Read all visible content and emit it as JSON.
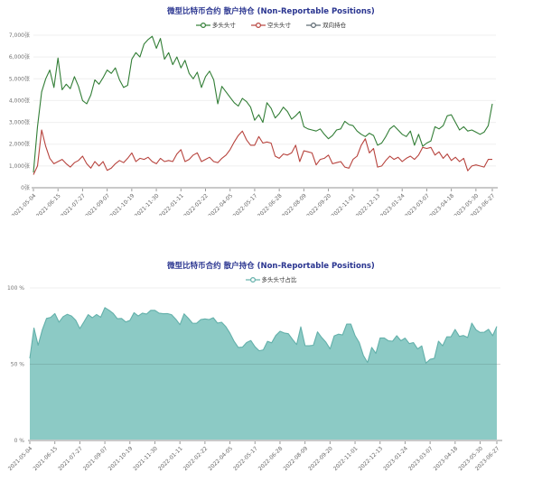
{
  "chart_data": [
    {
      "type": "line",
      "title": "微型比特币合约 散户持仓 (Non-Reportable Positions)",
      "x_start": "2021-05-04",
      "x_interval_days": 7,
      "n_points": 113,
      "x_tick_indices": [
        0,
        6,
        12,
        18,
        24,
        30,
        36,
        42,
        48,
        54,
        60,
        66,
        72,
        78,
        84,
        90,
        96,
        102,
        108,
        112
      ],
      "x_tick_labels": [
        "2021-05-04",
        "2021-06-15",
        "2021-07-27",
        "2021-09-07",
        "2021-10-19",
        "2021-11-30",
        "2022-01-11",
        "2022-02-22",
        "2022-04-05",
        "2022-05-17",
        "2022-06-28",
        "2022-08-09",
        "2022-09-20",
        "2022-11-01",
        "2022-12-13",
        "2023-01-24",
        "2023-03-07",
        "2023-04-18",
        "2023-05-30",
        "2023-06-27"
      ],
      "ylim": [
        0,
        7000
      ],
      "y_tick_values": [
        0,
        1000,
        2000,
        3000,
        4000,
        5000,
        6000,
        7000
      ],
      "y_tick_labels": [
        "0张",
        "1,000张",
        "2,000张",
        "3,000张",
        "4,000张",
        "5,000张",
        "6,000张",
        "7,000张"
      ],
      "grid": true,
      "legend_position": "top",
      "series": [
        {
          "key": "long",
          "name": "多头头寸",
          "color": "#327e36",
          "values": [
            700,
            2800,
            4400,
            5000,
            5400,
            4600,
            5950,
            4500,
            4750,
            4550,
            5100,
            4650,
            4000,
            3850,
            4250,
            4950,
            4750,
            5050,
            5400,
            5250,
            5500,
            4950,
            4600,
            4700,
            5900,
            6200,
            6000,
            6600,
            6800,
            6950,
            6400,
            6850,
            5900,
            6200,
            5650,
            6000,
            5500,
            5850,
            5250,
            5000,
            5300,
            4600,
            5100,
            5350,
            4950,
            3850,
            4650,
            4400,
            4150,
            3900,
            3750,
            4100,
            3950,
            3700,
            3100,
            3350,
            3000,
            3900,
            3650,
            3200,
            3400,
            3700,
            3500,
            3150,
            3300,
            3500,
            2800,
            2700,
            2650,
            2600,
            2700,
            2450,
            2250,
            2400,
            2650,
            2700,
            3050,
            2900,
            2850,
            2600,
            2450,
            2350,
            2500,
            2400,
            1950,
            2050,
            2350,
            2700,
            2850,
            2650,
            2450,
            2350,
            2600,
            1950,
            2450,
            1900,
            2050,
            2150,
            2800,
            2700,
            2850,
            3300,
            3350,
            3000,
            2650,
            2800,
            2600,
            2650,
            2550,
            2450,
            2550,
            2850,
            3850
          ]
        },
        {
          "key": "short",
          "name": "空头头寸",
          "color": "#b7433d",
          "values": [
            600,
            1000,
            2650,
            1900,
            1350,
            1100,
            1200,
            1300,
            1100,
            950,
            1150,
            1250,
            1450,
            1100,
            900,
            1200,
            1000,
            1200,
            800,
            900,
            1100,
            1250,
            1150,
            1350,
            1600,
            1200,
            1350,
            1300,
            1400,
            1200,
            1100,
            1350,
            1200,
            1250,
            1200,
            1550,
            1750,
            1200,
            1300,
            1500,
            1600,
            1200,
            1300,
            1400,
            1200,
            1150,
            1350,
            1500,
            1750,
            2100,
            2400,
            2600,
            2200,
            1950,
            1950,
            2350,
            2050,
            2100,
            2050,
            1450,
            1350,
            1550,
            1500,
            1600,
            1950,
            1200,
            1700,
            1650,
            1600,
            1050,
            1300,
            1350,
            1500,
            1100,
            1150,
            1200,
            950,
            900,
            1300,
            1450,
            1950,
            2250,
            1600,
            1800,
            950,
            1000,
            1250,
            1450,
            1300,
            1400,
            1200,
            1350,
            1450,
            1300,
            1500,
            1850,
            1800,
            1850,
            1500,
            1650,
            1350,
            1550,
            1250,
            1400,
            1200,
            1350,
            780,
            1000,
            1050,
            1000,
            950,
            1300,
            1300
          ]
        },
        {
          "key": "spread",
          "name": "双向持仓",
          "color": "#5b6770",
          "values": 0
        }
      ]
    },
    {
      "type": "area",
      "title": "微型比特币合约 散户持仓 (Non-Reportable Positions)",
      "x_start": "2021-05-04",
      "x_interval_days": 7,
      "n_points": 113,
      "x_tick_indices": [
        0,
        6,
        12,
        18,
        24,
        30,
        36,
        42,
        48,
        54,
        60,
        66,
        72,
        78,
        84,
        90,
        96,
        102,
        108,
        112
      ],
      "x_tick_labels": [
        "2021-05-04",
        "2021-06-15",
        "2021-07-27",
        "2021-09-07",
        "2021-10-19",
        "2021-11-30",
        "2022-01-11",
        "2022-02-22",
        "2022-04-05",
        "2022-05-17",
        "2022-06-28",
        "2022-08-09",
        "2022-09-20",
        "2022-11-01",
        "2022-12-13",
        "2023-01-24",
        "2023-03-07",
        "2023-04-18",
        "2023-05-30",
        "2023-06-27"
      ],
      "ylim": [
        0,
        100
      ],
      "y_tick_values": [
        0,
        50,
        100
      ],
      "y_tick_labels": [
        "0 %",
        "50 %",
        "100 %"
      ],
      "grid": true,
      "legend_position": "top",
      "series": [
        {
          "key": "long-ratio",
          "name": "多头头寸占比",
          "color": "#63b0aa",
          "fill": "#8ccac5",
          "values": [
            53.8,
            73.7,
            62.4,
            72.5,
            80.0,
            80.7,
            83.2,
            77.6,
            81.2,
            82.7,
            81.6,
            78.8,
            73.4,
            77.8,
            82.5,
            80.5,
            82.6,
            80.8,
            87.1,
            85.4,
            83.3,
            79.8,
            80.0,
            77.7,
            78.7,
            83.8,
            81.6,
            83.5,
            82.9,
            85.3,
            85.3,
            83.5,
            83.1,
            83.2,
            82.5,
            79.5,
            75.9,
            83.0,
            80.2,
            76.9,
            76.8,
            79.3,
            79.7,
            79.3,
            80.5,
            77.0,
            77.5,
            74.6,
            70.3,
            65.0,
            61.0,
            61.2,
            64.2,
            65.5,
            61.4,
            58.8,
            59.4,
            65.0,
            64.0,
            68.8,
            71.6,
            70.5,
            70.0,
            66.3,
            62.9,
            74.5,
            62.2,
            62.1,
            62.4,
            71.2,
            67.5,
            64.5,
            60.0,
            68.6,
            69.7,
            69.2,
            76.3,
            76.3,
            68.7,
            64.2,
            55.7,
            51.1,
            61.0,
            57.1,
            67.2,
            67.2,
            65.3,
            65.1,
            68.7,
            65.4,
            67.1,
            63.5,
            64.2,
            60.0,
            62.0,
            50.7,
            53.2,
            53.8,
            65.1,
            62.1,
            67.9,
            68.0,
            72.8,
            68.2,
            68.8,
            67.5,
            76.9,
            72.6,
            70.8,
            71.0,
            72.9,
            68.7,
            74.8
          ]
        }
      ]
    }
  ],
  "colors": {
    "title": "#2a3590",
    "axis_line": "#c9c9c9",
    "grid_line": "#efefef",
    "axis_label": "#737373"
  }
}
